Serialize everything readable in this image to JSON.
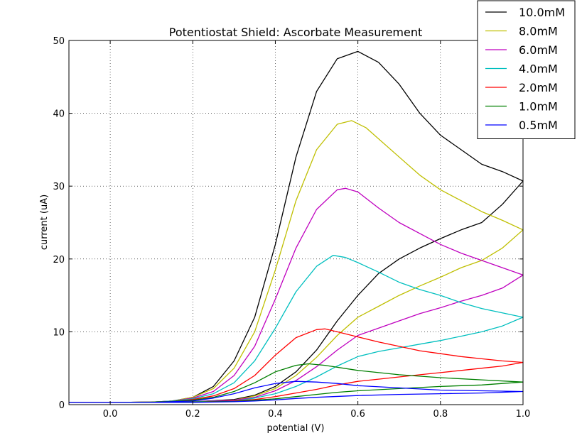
{
  "chart_data": {
    "type": "line",
    "title": "Potentiostat Shield: Ascorbate Measurement",
    "xlabel": "potential (V)",
    "ylabel": "current (uA)",
    "xlim": [
      -0.1,
      1.0
    ],
    "ylim": [
      0,
      50
    ],
    "xticks": [
      0.0,
      0.2,
      0.4,
      0.6,
      0.8,
      1.0
    ],
    "xtick_labels": [
      "0.0",
      "0.2",
      "0.4",
      "0.6",
      "0.8",
      "1.0"
    ],
    "yticks": [
      0,
      10,
      20,
      30,
      40,
      50
    ],
    "ytick_labels": [
      "0",
      "10",
      "20",
      "30",
      "40",
      "50"
    ],
    "grid": true,
    "legend_position": "top-right",
    "series": [
      {
        "name": "10.0mM",
        "color": "#000000",
        "forward": [
          [
            -0.1,
            0.3
          ],
          [
            0.0,
            0.3
          ],
          [
            0.1,
            0.35
          ],
          [
            0.15,
            0.5
          ],
          [
            0.2,
            1.0
          ],
          [
            0.25,
            2.5
          ],
          [
            0.3,
            6.0
          ],
          [
            0.35,
            12.0
          ],
          [
            0.4,
            22.0
          ],
          [
            0.45,
            34.0
          ],
          [
            0.5,
            43.0
          ],
          [
            0.55,
            47.5
          ],
          [
            0.6,
            48.5
          ],
          [
            0.65,
            47.0
          ],
          [
            0.7,
            44.0
          ],
          [
            0.75,
            40.0
          ],
          [
            0.8,
            37.0
          ],
          [
            0.85,
            35.0
          ],
          [
            0.9,
            33.0
          ],
          [
            0.95,
            32.0
          ],
          [
            1.0,
            30.7
          ]
        ],
        "reverse": [
          [
            1.0,
            30.7
          ],
          [
            0.95,
            27.5
          ],
          [
            0.9,
            25.0
          ],
          [
            0.85,
            24.0
          ],
          [
            0.8,
            22.8
          ],
          [
            0.75,
            21.5
          ],
          [
            0.7,
            20.0
          ],
          [
            0.65,
            18.0
          ],
          [
            0.6,
            15.0
          ],
          [
            0.55,
            11.5
          ],
          [
            0.5,
            7.5
          ],
          [
            0.45,
            4.5
          ],
          [
            0.4,
            2.5
          ],
          [
            0.35,
            1.3
          ],
          [
            0.3,
            0.7
          ],
          [
            0.2,
            0.4
          ],
          [
            0.0,
            0.3
          ],
          [
            -0.1,
            0.3
          ]
        ]
      },
      {
        "name": "8.0mM",
        "color": "#bfbf00",
        "forward": [
          [
            -0.1,
            0.3
          ],
          [
            0.0,
            0.3
          ],
          [
            0.1,
            0.35
          ],
          [
            0.15,
            0.5
          ],
          [
            0.2,
            1.0
          ],
          [
            0.25,
            2.2
          ],
          [
            0.3,
            5.0
          ],
          [
            0.35,
            10.0
          ],
          [
            0.4,
            18.5
          ],
          [
            0.45,
            28.0
          ],
          [
            0.5,
            35.0
          ],
          [
            0.55,
            38.5
          ],
          [
            0.585,
            39.0
          ],
          [
            0.62,
            38.0
          ],
          [
            0.7,
            34.0
          ],
          [
            0.75,
            31.5
          ],
          [
            0.8,
            29.5
          ],
          [
            0.85,
            28.0
          ],
          [
            0.9,
            26.5
          ],
          [
            0.95,
            25.3
          ],
          [
            1.0,
            24.0
          ]
        ],
        "reverse": [
          [
            1.0,
            24.0
          ],
          [
            0.95,
            21.5
          ],
          [
            0.9,
            19.8
          ],
          [
            0.85,
            18.8
          ],
          [
            0.8,
            17.5
          ],
          [
            0.75,
            16.3
          ],
          [
            0.7,
            15.0
          ],
          [
            0.65,
            13.5
          ],
          [
            0.6,
            12.0
          ],
          [
            0.55,
            9.5
          ],
          [
            0.5,
            6.5
          ],
          [
            0.45,
            4.0
          ],
          [
            0.4,
            2.2
          ],
          [
            0.35,
            1.2
          ],
          [
            0.3,
            0.6
          ],
          [
            0.2,
            0.4
          ],
          [
            0.0,
            0.3
          ],
          [
            -0.1,
            0.3
          ]
        ]
      },
      {
        "name": "6.0mM",
        "color": "#bf00bf",
        "forward": [
          [
            -0.1,
            0.3
          ],
          [
            0.0,
            0.3
          ],
          [
            0.1,
            0.35
          ],
          [
            0.15,
            0.5
          ],
          [
            0.2,
            0.9
          ],
          [
            0.25,
            1.8
          ],
          [
            0.3,
            4.0
          ],
          [
            0.35,
            8.0
          ],
          [
            0.4,
            14.5
          ],
          [
            0.45,
            21.5
          ],
          [
            0.5,
            26.8
          ],
          [
            0.55,
            29.5
          ],
          [
            0.57,
            29.7
          ],
          [
            0.6,
            29.2
          ],
          [
            0.65,
            27.0
          ],
          [
            0.7,
            25.0
          ],
          [
            0.75,
            23.5
          ],
          [
            0.8,
            22.0
          ],
          [
            0.85,
            20.8
          ],
          [
            0.9,
            19.8
          ],
          [
            0.95,
            18.8
          ],
          [
            1.0,
            17.8
          ]
        ],
        "reverse": [
          [
            1.0,
            17.8
          ],
          [
            0.95,
            16.0
          ],
          [
            0.9,
            15.0
          ],
          [
            0.85,
            14.2
          ],
          [
            0.8,
            13.3
          ],
          [
            0.75,
            12.5
          ],
          [
            0.7,
            11.5
          ],
          [
            0.65,
            10.5
          ],
          [
            0.6,
            9.5
          ],
          [
            0.55,
            7.5
          ],
          [
            0.5,
            5.2
          ],
          [
            0.45,
            3.3
          ],
          [
            0.4,
            1.9
          ],
          [
            0.35,
            1.0
          ],
          [
            0.3,
            0.6
          ],
          [
            0.2,
            0.4
          ],
          [
            0.0,
            0.3
          ],
          [
            -0.1,
            0.3
          ]
        ]
      },
      {
        "name": "4.0mM",
        "color": "#00bfbf",
        "forward": [
          [
            -0.1,
            0.3
          ],
          [
            0.0,
            0.3
          ],
          [
            0.1,
            0.35
          ],
          [
            0.15,
            0.5
          ],
          [
            0.2,
            0.8
          ],
          [
            0.25,
            1.5
          ],
          [
            0.3,
            3.0
          ],
          [
            0.35,
            6.0
          ],
          [
            0.4,
            10.5
          ],
          [
            0.45,
            15.5
          ],
          [
            0.5,
            19.0
          ],
          [
            0.54,
            20.5
          ],
          [
            0.57,
            20.2
          ],
          [
            0.6,
            19.5
          ],
          [
            0.65,
            18.2
          ],
          [
            0.7,
            16.8
          ],
          [
            0.75,
            15.8
          ],
          [
            0.8,
            15.0
          ],
          [
            0.85,
            14.0
          ],
          [
            0.9,
            13.2
          ],
          [
            0.95,
            12.6
          ],
          [
            1.0,
            12.0
          ]
        ],
        "reverse": [
          [
            1.0,
            12.0
          ],
          [
            0.95,
            10.8
          ],
          [
            0.9,
            10.0
          ],
          [
            0.85,
            9.4
          ],
          [
            0.8,
            8.8
          ],
          [
            0.75,
            8.3
          ],
          [
            0.7,
            7.8
          ],
          [
            0.65,
            7.3
          ],
          [
            0.6,
            6.6
          ],
          [
            0.55,
            5.3
          ],
          [
            0.5,
            3.8
          ],
          [
            0.45,
            2.5
          ],
          [
            0.4,
            1.5
          ],
          [
            0.35,
            0.9
          ],
          [
            0.3,
            0.5
          ],
          [
            0.2,
            0.4
          ],
          [
            0.0,
            0.3
          ],
          [
            -0.1,
            0.3
          ]
        ]
      },
      {
        "name": "2.0mM",
        "color": "#ff0000",
        "forward": [
          [
            -0.1,
            0.3
          ],
          [
            0.0,
            0.3
          ],
          [
            0.1,
            0.35
          ],
          [
            0.15,
            0.45
          ],
          [
            0.2,
            0.7
          ],
          [
            0.25,
            1.2
          ],
          [
            0.3,
            2.2
          ],
          [
            0.35,
            4.0
          ],
          [
            0.4,
            6.8
          ],
          [
            0.45,
            9.2
          ],
          [
            0.5,
            10.3
          ],
          [
            0.52,
            10.4
          ],
          [
            0.55,
            10.0
          ],
          [
            0.6,
            9.3
          ],
          [
            0.65,
            8.6
          ],
          [
            0.7,
            8.0
          ],
          [
            0.75,
            7.4
          ],
          [
            0.8,
            7.0
          ],
          [
            0.85,
            6.6
          ],
          [
            0.9,
            6.3
          ],
          [
            0.95,
            6.0
          ],
          [
            1.0,
            5.8
          ]
        ],
        "reverse": [
          [
            1.0,
            5.8
          ],
          [
            0.95,
            5.3
          ],
          [
            0.9,
            5.0
          ],
          [
            0.85,
            4.7
          ],
          [
            0.8,
            4.4
          ],
          [
            0.75,
            4.1
          ],
          [
            0.7,
            3.8
          ],
          [
            0.65,
            3.5
          ],
          [
            0.6,
            3.2
          ],
          [
            0.55,
            2.7
          ],
          [
            0.5,
            2.1
          ],
          [
            0.45,
            1.6
          ],
          [
            0.4,
            1.1
          ],
          [
            0.35,
            0.7
          ],
          [
            0.3,
            0.5
          ],
          [
            0.2,
            0.35
          ],
          [
            0.0,
            0.3
          ],
          [
            -0.1,
            0.3
          ]
        ]
      },
      {
        "name": "1.0mM",
        "color": "#007f00",
        "forward": [
          [
            -0.1,
            0.3
          ],
          [
            0.0,
            0.3
          ],
          [
            0.1,
            0.35
          ],
          [
            0.15,
            0.45
          ],
          [
            0.2,
            0.6
          ],
          [
            0.25,
            1.0
          ],
          [
            0.3,
            1.8
          ],
          [
            0.35,
            3.0
          ],
          [
            0.4,
            4.5
          ],
          [
            0.45,
            5.4
          ],
          [
            0.48,
            5.6
          ],
          [
            0.52,
            5.4
          ],
          [
            0.6,
            4.7
          ],
          [
            0.7,
            4.1
          ],
          [
            0.8,
            3.7
          ],
          [
            0.9,
            3.4
          ],
          [
            1.0,
            3.1
          ]
        ],
        "reverse": [
          [
            1.0,
            3.1
          ],
          [
            0.95,
            2.9
          ],
          [
            0.9,
            2.7
          ],
          [
            0.85,
            2.6
          ],
          [
            0.8,
            2.5
          ],
          [
            0.7,
            2.2
          ],
          [
            0.6,
            1.9
          ],
          [
            0.55,
            1.7
          ],
          [
            0.5,
            1.4
          ],
          [
            0.45,
            1.1
          ],
          [
            0.4,
            0.8
          ],
          [
            0.35,
            0.6
          ],
          [
            0.3,
            0.45
          ],
          [
            0.2,
            0.35
          ],
          [
            0.0,
            0.3
          ],
          [
            -0.1,
            0.3
          ]
        ]
      },
      {
        "name": "0.5mM",
        "color": "#0000ff",
        "forward": [
          [
            -0.1,
            0.3
          ],
          [
            0.0,
            0.3
          ],
          [
            0.1,
            0.3
          ],
          [
            0.2,
            0.5
          ],
          [
            0.25,
            0.9
          ],
          [
            0.3,
            1.5
          ],
          [
            0.35,
            2.3
          ],
          [
            0.4,
            2.9
          ],
          [
            0.45,
            3.2
          ],
          [
            0.5,
            3.1
          ],
          [
            0.55,
            2.9
          ],
          [
            0.6,
            2.6
          ],
          [
            0.7,
            2.3
          ],
          [
            0.8,
            2.0
          ],
          [
            0.9,
            1.9
          ],
          [
            1.0,
            1.8
          ]
        ],
        "reverse": [
          [
            1.0,
            1.8
          ],
          [
            0.9,
            1.6
          ],
          [
            0.8,
            1.5
          ],
          [
            0.7,
            1.4
          ],
          [
            0.6,
            1.25
          ],
          [
            0.5,
            1.0
          ],
          [
            0.45,
            0.85
          ],
          [
            0.4,
            0.65
          ],
          [
            0.35,
            0.5
          ],
          [
            0.3,
            0.4
          ],
          [
            0.2,
            0.3
          ],
          [
            0.0,
            0.3
          ],
          [
            -0.1,
            0.3
          ]
        ]
      }
    ]
  }
}
